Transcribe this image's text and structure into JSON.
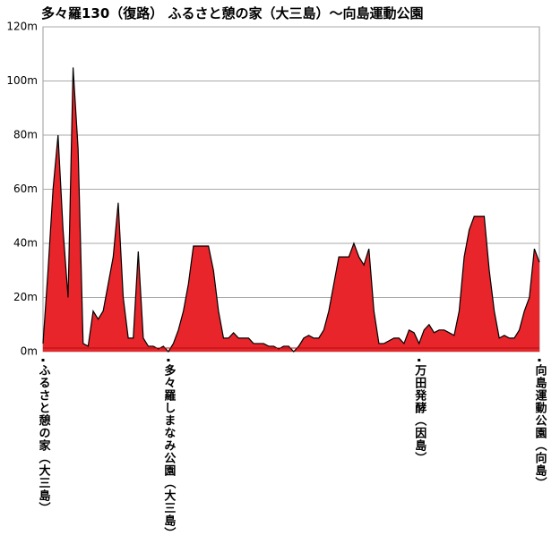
{
  "chart_data": {
    "type": "area",
    "title": "多々羅130（復路） ふるさと憩の家（大三島）～向島運動公園",
    "categories": [
      "ふるさと憩の家（大三島）",
      null,
      null,
      null,
      null,
      null,
      null,
      null,
      null,
      null,
      null,
      null,
      null,
      null,
      null,
      null,
      null,
      null,
      null,
      null,
      null,
      null,
      null,
      null,
      null,
      "多々羅しまなみ公園（大三島）",
      null,
      null,
      null,
      null,
      null,
      null,
      null,
      null,
      null,
      null,
      null,
      null,
      null,
      null,
      null,
      null,
      null,
      null,
      null,
      null,
      null,
      null,
      null,
      null,
      null,
      null,
      null,
      null,
      null,
      null,
      null,
      null,
      null,
      null,
      null,
      null,
      null,
      null,
      null,
      null,
      null,
      null,
      null,
      null,
      null,
      null,
      null,
      null,
      null,
      "万田発酵（因島）",
      null,
      null,
      null,
      null,
      null,
      null,
      null,
      null,
      null,
      null,
      null,
      null,
      null,
      null,
      null,
      null,
      null,
      null,
      null,
      null,
      null,
      null,
      null,
      "向島運動公園（向島）"
    ],
    "values": [
      3,
      30,
      60,
      80,
      45,
      20,
      105,
      75,
      3,
      2,
      15,
      12,
      15,
      25,
      35,
      55,
      20,
      5,
      5,
      37,
      5,
      2,
      2,
      1,
      2,
      0,
      3,
      8,
      15,
      25,
      39,
      39,
      39,
      39,
      30,
      15,
      5,
      5,
      7,
      5,
      5,
      5,
      3,
      3,
      3,
      2,
      2,
      1,
      2,
      2,
      0,
      2,
      5,
      6,
      5,
      5,
      8,
      15,
      25,
      35,
      35,
      35,
      40,
      35,
      32,
      38,
      15,
      3,
      3,
      4,
      5,
      5,
      3,
      8,
      7,
      3,
      8,
      10,
      7,
      8,
      8,
      7,
      6,
      15,
      35,
      45,
      50,
      50,
      50,
      30,
      15,
      5,
      6,
      5,
      5,
      8,
      15,
      20,
      38,
      33
    ],
    "color": "#e8252a",
    "ylim": [
      0,
      120
    ],
    "yticks": [
      {
        "value": 0,
        "label": "0m"
      },
      {
        "value": 20,
        "label": "20m"
      },
      {
        "value": 40,
        "label": "40m"
      },
      {
        "value": 60,
        "label": "60m"
      },
      {
        "value": 80,
        "label": "80m"
      },
      {
        "value": 100,
        "label": "100m"
      },
      {
        "value": 120,
        "label": "120m"
      }
    ],
    "grid": true
  }
}
